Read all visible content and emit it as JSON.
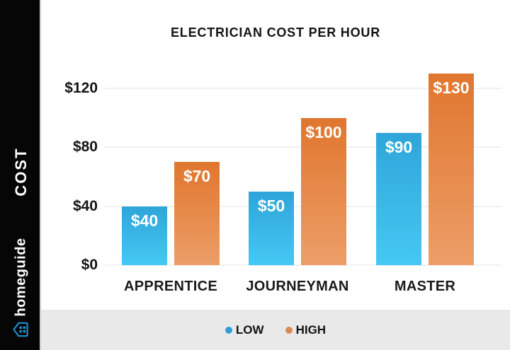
{
  "sidebar": {
    "cost_label": "COST",
    "brand": "homeguide",
    "brand_icon": "house-icon",
    "brand_icon_color": "#1e8fcb"
  },
  "title": "ELECTRICIAN COST PER HOUR",
  "legend": [
    {
      "label": "LOW",
      "color": "#2d9fd6"
    },
    {
      "label": "HIGH",
      "color": "#dd8a52"
    }
  ],
  "chart_data": {
    "type": "bar",
    "title": "ELECTRICIAN COST PER HOUR",
    "categories": [
      "APPRENTICE",
      "JOURNEYMAN",
      "MASTER"
    ],
    "series": [
      {
        "name": "LOW",
        "values": [
          40,
          50,
          90
        ],
        "labels": [
          "$40",
          "$50",
          "$90"
        ],
        "color_top": "#2fa5d9",
        "color_bottom": "#45c8f4"
      },
      {
        "name": "HIGH",
        "values": [
          70,
          100,
          130
        ],
        "labels": [
          "$70",
          "$100",
          "$130"
        ],
        "color_top": "#e0762e",
        "color_bottom": "#ec9e68"
      }
    ],
    "yticks": [
      {
        "value": 0,
        "label": "$0"
      },
      {
        "value": 40,
        "label": "$40"
      },
      {
        "value": 80,
        "label": "$80"
      },
      {
        "value": 120,
        "label": "$120"
      }
    ],
    "ylim": [
      0,
      144
    ],
    "ylabel": "COST",
    "grid": true,
    "legend_position": "bottom"
  }
}
